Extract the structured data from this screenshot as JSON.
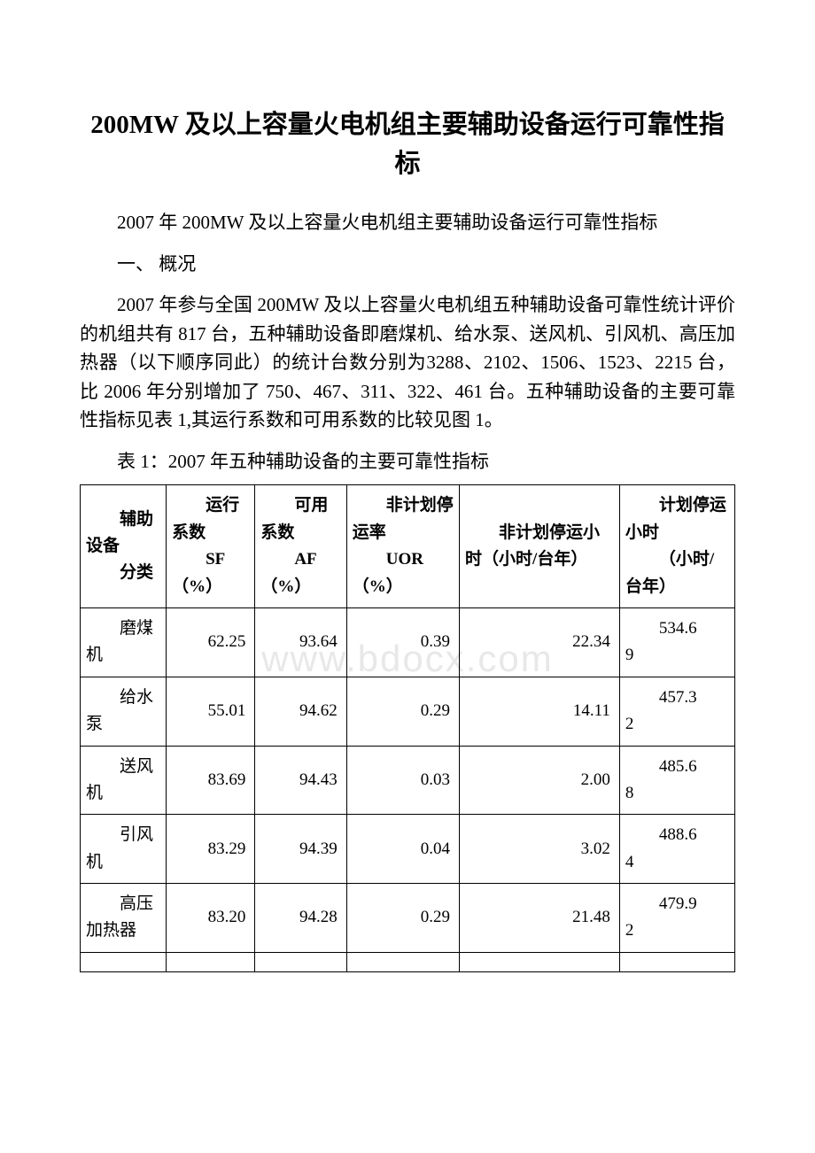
{
  "title": "200MW 及以上容量火电机组主要辅助设备运行可靠性指标",
  "subtitle": "2007 年 200MW 及以上容量火电机组主要辅助设备运行可靠性指标",
  "section_heading": "一、 概况",
  "body_paragraph": "2007 年参与全国 200MW 及以上容量火电机组五种辅助设备可靠性统计评价的机组共有 817 台，五种辅助设备即磨煤机、给水泵、送风机、引风机、高压加热器（以下顺序同此）的统计台数分别为3288、2102、1506、1523、2215 台，比 2006 年分别增加了 750、467、311、322、461 台。五种辅助设备的主要可靠性指标见表 1,其运行系数和可用系数的比较见图 1。",
  "table_caption": "表 1：2007 年五种辅助设备的主要可靠性指标",
  "watermark_text": "www.bdocx.com",
  "table": {
    "columns": [
      {
        "label_top": "辅助设备",
        "label_bottom": "分类",
        "width": "15%"
      },
      {
        "label_top": "运行系数",
        "label_bottom": "SF（%）",
        "width": "14%"
      },
      {
        "label_top": "可用系数",
        "label_bottom": "AF（%）",
        "width": "14%"
      },
      {
        "label_top": "非计划停运率",
        "label_bottom": "UOR（%）",
        "width": "15%"
      },
      {
        "label_top": "非计划停运小时（小时/台年）",
        "label_bottom": "",
        "width": "17%"
      },
      {
        "label_top": "计划停运小时",
        "label_bottom": "（小时/台年）",
        "width": "15%"
      }
    ],
    "rows": [
      {
        "name_first": "磨煤",
        "name_rest": "机",
        "sf": "62.25",
        "af": "93.64",
        "uor": "0.39",
        "unplanned": "22.34",
        "planned_first": "534.6",
        "planned_rest": "9"
      },
      {
        "name_first": "给水",
        "name_rest": "泵",
        "sf": "55.01",
        "af": "94.62",
        "uor": "0.29",
        "unplanned": "14.11",
        "planned_first": "457.3",
        "planned_rest": "2"
      },
      {
        "name_first": "送风",
        "name_rest": "机",
        "sf": "83.69",
        "af": "94.43",
        "uor": "0.03",
        "unplanned": "2.00",
        "planned_first": "485.6",
        "planned_rest": "8"
      },
      {
        "name_first": "引风",
        "name_rest": "机",
        "sf": "83.29",
        "af": "94.39",
        "uor": "0.04",
        "unplanned": "3.02",
        "planned_first": "488.6",
        "planned_rest": "4"
      },
      {
        "name_first": "高压",
        "name_rest": "加热器",
        "sf": "83.20",
        "af": "94.28",
        "uor": "0.29",
        "unplanned": "21.48",
        "planned_first": "479.9",
        "planned_rest": "2"
      }
    ],
    "colors": {
      "border": "#000000",
      "background": "#ffffff",
      "text": "#000000"
    }
  }
}
